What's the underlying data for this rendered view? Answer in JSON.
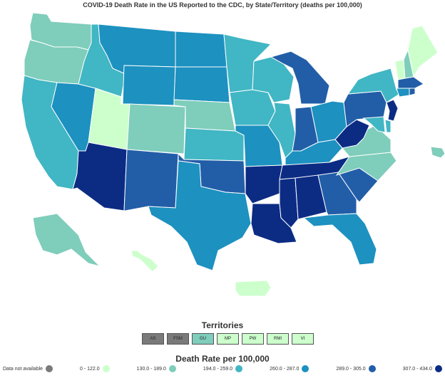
{
  "title": "COVID-19 Death Rate in the US Reported to the CDC, by State/Territory (deaths per 100,000)",
  "colors": {
    "na": "#7a7a7a",
    "c1": "#ccffcc",
    "c2": "#7fcdbb",
    "c3": "#41b6c4",
    "c4": "#1d91c0",
    "c5": "#225ea8",
    "c6": "#0c2c84"
  },
  "territories": {
    "title": "Territories",
    "items": [
      {
        "label": "AS",
        "class": "na"
      },
      {
        "label": "FSM",
        "class": "na"
      },
      {
        "label": "GU",
        "class": "c2"
      },
      {
        "label": "MP",
        "class": "c1"
      },
      {
        "label": "PW",
        "class": "c1"
      },
      {
        "label": "RMI",
        "class": "c1"
      },
      {
        "label": "VI",
        "class": "c1"
      }
    ]
  },
  "legend": {
    "title": "Death Rate per 100,000",
    "items": [
      {
        "label": "Data not available",
        "class": "na"
      },
      {
        "label": "0 - 122.0",
        "class": "c1"
      },
      {
        "label": "130.0 - 189.0",
        "class": "c2"
      },
      {
        "label": "194.0 - 259.0",
        "class": "c3"
      },
      {
        "label": "260.0 - 287.0",
        "class": "c4"
      },
      {
        "label": "289.0 - 305.0",
        "class": "c5"
      },
      {
        "label": "307.0 - 434.0",
        "class": "c6"
      }
    ]
  },
  "states": {
    "WA": "c2",
    "OR": "c2",
    "CA": "c3",
    "NV": "c4",
    "ID": "c3",
    "MT": "c4",
    "WY": "c4",
    "UT": "c1",
    "AZ": "c6",
    "CO": "c2",
    "NM": "c5",
    "ND": "c4",
    "SD": "c4",
    "NE": "c2",
    "KS": "c3",
    "OK": "c5",
    "TX": "c4",
    "MN": "c3",
    "IA": "c3",
    "MO": "c4",
    "AR": "c6",
    "LA": "c6",
    "WI": "c3",
    "IL": "c3",
    "MI": "c5",
    "IN": "c5",
    "OH": "c4",
    "KY": "c4",
    "TN": "c6",
    "MS": "c6",
    "AL": "c6",
    "GA": "c5",
    "FL": "c4",
    "SC": "c5",
    "NC": "c2",
    "VA": "c2",
    "WV": "c6",
    "PA": "c5",
    "NY": "c3",
    "VT": "c1",
    "NH": "c2",
    "ME": "c1",
    "MA": "c5",
    "CT": "c4",
    "RI": "c5",
    "NJ": "c6",
    "DE": "c3",
    "MD": "c3",
    "AK": "c2",
    "HI": "c1",
    "PR": "c1",
    "EXT": "c2"
  }
}
